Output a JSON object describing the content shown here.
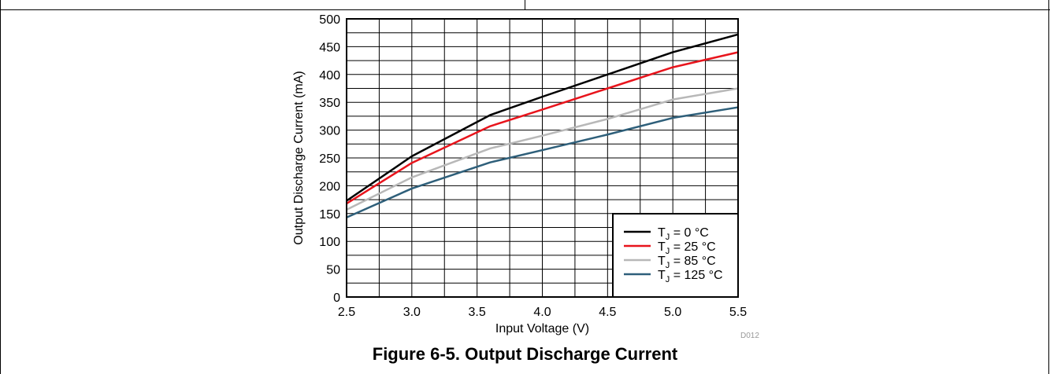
{
  "figure": {
    "caption": "Figure 6-5. Output Discharge Current",
    "code": "D012"
  },
  "colors": {
    "background": "#ffffff",
    "grid": "#000000"
  },
  "chart_data": {
    "type": "line",
    "title": "",
    "xlabel": "Input Voltage (V)",
    "ylabel": "Output Discharge Current (mA)",
    "xlim": [
      2.5,
      5.5
    ],
    "ylim": [
      0,
      500
    ],
    "xticks": [
      2.5,
      3.0,
      3.5,
      4.0,
      4.5,
      5.0,
      5.5
    ],
    "xtick_labels": [
      "2.5",
      "3.0",
      "3.5",
      "4.0",
      "4.5",
      "5.0",
      "5.5"
    ],
    "yticks": [
      0,
      50,
      100,
      150,
      200,
      250,
      300,
      350,
      400,
      450,
      500
    ],
    "ytick_labels": [
      "0",
      "50",
      "100",
      "150",
      "200",
      "250",
      "300",
      "350",
      "400",
      "450",
      "500"
    ],
    "x_minor_step": 0.25,
    "y_minor_step": 25,
    "grid": true,
    "legend_position": "bottom-right",
    "series": [
      {
        "name": "T_J = 0 °C",
        "sub": "J",
        "prefix": "T",
        "suffix": " = 0 °C",
        "color": "#000000",
        "x": [
          2.5,
          3.0,
          3.6,
          4.0,
          4.5,
          5.0,
          5.5
        ],
        "y": [
          173,
          253,
          327,
          360,
          400,
          440,
          472
        ]
      },
      {
        "name": "T_J = 25 °C",
        "sub": "J",
        "prefix": "T",
        "suffix": " = 25 °C",
        "color": "#e8141c",
        "x": [
          2.5,
          3.0,
          3.6,
          4.0,
          4.5,
          5.0,
          5.5
        ],
        "y": [
          168,
          241,
          307,
          337,
          375,
          413,
          440
        ]
      },
      {
        "name": "T_J = 85 °C",
        "sub": "J",
        "prefix": "T",
        "suffix": " = 85 °C",
        "color": "#b8b8b8",
        "x": [
          2.5,
          3.0,
          3.6,
          4.0,
          4.5,
          5.0,
          5.5
        ],
        "y": [
          157,
          215,
          267,
          290,
          320,
          355,
          375
        ]
      },
      {
        "name": "T_J = 125 °C",
        "sub": "J",
        "prefix": "T",
        "suffix": " = 125 °C",
        "color": "#2e5f7a",
        "x": [
          2.5,
          3.0,
          3.6,
          4.0,
          4.5,
          5.0,
          5.5
        ],
        "y": [
          143,
          195,
          242,
          264,
          292,
          322,
          341
        ]
      }
    ]
  }
}
